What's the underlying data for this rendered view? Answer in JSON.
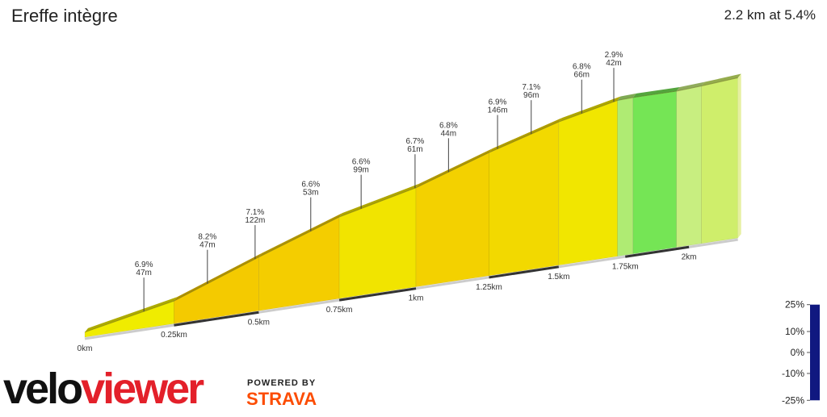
{
  "chart_data": {
    "type": "elevation-profile",
    "title": "Ereffe intègre",
    "subtitle": "2.2 km at 5.4%",
    "distance_km": [
      0,
      0.25,
      0.5,
      0.75,
      1.0,
      1.25,
      1.5,
      1.72,
      1.78,
      1.95,
      2.05,
      2.2
    ],
    "elevation_m": [
      3,
      14,
      34,
      53,
      66,
      84,
      100,
      111,
      112,
      113.5,
      115.5,
      119
    ],
    "xlim": [
      0,
      2.2
    ],
    "xticks": [
      {
        "value": 0,
        "label": "0km"
      },
      {
        "value": 0.25,
        "label": "0.25km"
      },
      {
        "value": 0.5,
        "label": "0.5km"
      },
      {
        "value": 0.75,
        "label": "0.75km"
      },
      {
        "value": 1,
        "label": "1km"
      },
      {
        "value": 1.25,
        "label": "1.25km"
      },
      {
        "value": 1.5,
        "label": "1.5km"
      },
      {
        "value": 1.75,
        "label": "1.75km"
      },
      {
        "value": 2,
        "label": "2km"
      }
    ],
    "annotations": [
      {
        "at_km": 0.164,
        "grade": "6.9%",
        "length": "47m"
      },
      {
        "at_km": 0.347,
        "grade": "8.2%",
        "length": "47m"
      },
      {
        "at_km": 0.489,
        "grade": "7.1%",
        "length": "122m"
      },
      {
        "at_km": 0.66,
        "grade": "6.6%",
        "length": "53m"
      },
      {
        "at_km": 0.82,
        "grade": "6.6%",
        "length": "99m"
      },
      {
        "at_km": 0.997,
        "grade": "6.7%",
        "length": "61m"
      },
      {
        "at_km": 1.11,
        "grade": "6.8%",
        "length": "44m"
      },
      {
        "at_km": 1.28,
        "grade": "6.9%",
        "length": "146m"
      },
      {
        "at_km": 1.4,
        "grade": "7.1%",
        "length": "96m"
      },
      {
        "at_km": 1.585,
        "grade": "6.8%",
        "length": "66m"
      },
      {
        "at_km": 1.706,
        "grade": "2.9%",
        "length": "42m"
      }
    ]
  },
  "color_scale": {
    "range": [
      -25,
      25
    ],
    "stops": [
      {
        "value": -25,
        "color": "#101880"
      },
      {
        "value": -10,
        "color": "#00c8e8"
      },
      {
        "value": 0,
        "color": "#33dd33"
      },
      {
        "value": 2,
        "color": "#c8ee80"
      },
      {
        "value": 4,
        "color": "#f0f000"
      },
      {
        "value": 9,
        "color": "#f5c000"
      },
      {
        "value": 10,
        "color": "#ee3a20"
      },
      {
        "value": 25,
        "color": "#600000"
      }
    ],
    "ticks": [
      {
        "value": 25,
        "label": "25%"
      },
      {
        "value": 10,
        "label": "10%"
      },
      {
        "value": 0,
        "label": "0%"
      },
      {
        "value": -10,
        "label": "-10%"
      },
      {
        "value": -25,
        "label": "-25%"
      }
    ]
  },
  "branding": {
    "logo_dark": "velo",
    "logo_red": "viewer",
    "powered_by": "POWERED BY",
    "strava": "STRAVA"
  }
}
